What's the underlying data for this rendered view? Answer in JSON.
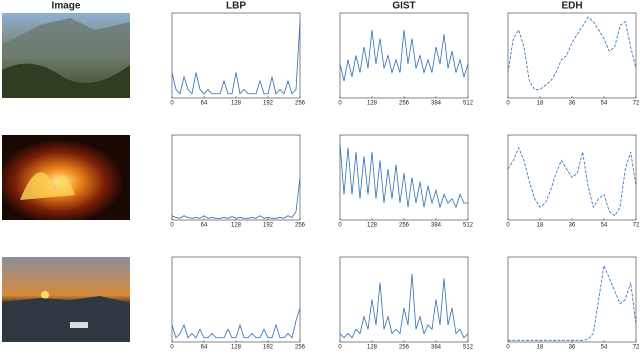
{
  "header": {
    "image_title": "Image"
  },
  "chart_data": [
    {
      "type": "line",
      "title": "LBP",
      "x": [
        0,
        8,
        16,
        24,
        32,
        40,
        48,
        56,
        64,
        72,
        80,
        88,
        96,
        104,
        112,
        120,
        128,
        136,
        144,
        152,
        160,
        168,
        176,
        184,
        192,
        200,
        208,
        216,
        224,
        232,
        240,
        248,
        256
      ],
      "values": [
        0.3,
        0.1,
        0.05,
        0.25,
        0.1,
        0.05,
        0.3,
        0.1,
        0.05,
        0.1,
        0.05,
        0.05,
        0.05,
        0.2,
        0.05,
        0.05,
        0.3,
        0.05,
        0.1,
        0.05,
        0.05,
        0.05,
        0.2,
        0.05,
        0.05,
        0.25,
        0.05,
        0.1,
        0.05,
        0.2,
        0.05,
        0.1,
        0.9
      ],
      "xlim": [
        0,
        256
      ],
      "xticks": [
        0,
        64,
        128,
        192,
        256
      ],
      "ylim": [
        0,
        1
      ],
      "color": "#2a6fb5",
      "line_style": "solid"
    },
    {
      "type": "line",
      "title": "GIST",
      "x": [
        0,
        16,
        32,
        48,
        64,
        80,
        96,
        112,
        128,
        144,
        160,
        176,
        192,
        208,
        224,
        240,
        256,
        272,
        288,
        304,
        320,
        336,
        352,
        368,
        384,
        400,
        416,
        432,
        448,
        464,
        480,
        496,
        512
      ],
      "values": [
        0.4,
        0.2,
        0.45,
        0.25,
        0.5,
        0.3,
        0.6,
        0.35,
        0.8,
        0.4,
        0.7,
        0.35,
        0.5,
        0.3,
        0.45,
        0.3,
        0.8,
        0.4,
        0.7,
        0.35,
        0.5,
        0.3,
        0.45,
        0.3,
        0.6,
        0.4,
        0.75,
        0.35,
        0.55,
        0.3,
        0.45,
        0.25,
        0.4
      ],
      "xlim": [
        0,
        512
      ],
      "xticks": [
        0,
        128,
        256,
        384,
        512
      ],
      "ylim": [
        0,
        1
      ],
      "color": "#2a6fb5",
      "line_style": "solid"
    },
    {
      "type": "line",
      "title": "EDH",
      "x": [
        0,
        3,
        6,
        9,
        12,
        15,
        18,
        21,
        24,
        27,
        30,
        33,
        36,
        39,
        42,
        45,
        48,
        51,
        54,
        57,
        60,
        63,
        66,
        69,
        72
      ],
      "values": [
        0.3,
        0.7,
        0.8,
        0.6,
        0.2,
        0.1,
        0.1,
        0.15,
        0.2,
        0.3,
        0.45,
        0.5,
        0.65,
        0.75,
        0.85,
        0.95,
        0.9,
        0.8,
        0.7,
        0.55,
        0.6,
        0.85,
        0.9,
        0.6,
        0.35
      ],
      "xlim": [
        0,
        72
      ],
      "xticks": [
        0,
        18,
        36,
        54,
        72
      ],
      "ylim": [
        0,
        1
      ],
      "color": "#2a6fb5",
      "line_style": "dashed"
    },
    {
      "type": "line",
      "x": [
        0,
        8,
        16,
        24,
        32,
        40,
        48,
        56,
        64,
        72,
        80,
        88,
        96,
        104,
        112,
        120,
        128,
        136,
        144,
        152,
        160,
        168,
        176,
        184,
        192,
        200,
        208,
        216,
        224,
        232,
        240,
        248,
        256
      ],
      "values": [
        0.05,
        0.03,
        0.02,
        0.05,
        0.03,
        0.02,
        0.03,
        0.02,
        0.05,
        0.02,
        0.03,
        0.02,
        0.02,
        0.03,
        0.02,
        0.04,
        0.02,
        0.03,
        0.02,
        0.02,
        0.03,
        0.02,
        0.05,
        0.02,
        0.03,
        0.02,
        0.02,
        0.03,
        0.02,
        0.05,
        0.03,
        0.1,
        0.5
      ],
      "xlim": [
        0,
        256
      ],
      "xticks": [
        0,
        64,
        128,
        192,
        256
      ],
      "ylim": [
        0,
        1
      ],
      "color": "#2a6fb5",
      "line_style": "solid"
    },
    {
      "type": "line",
      "x": [
        0,
        16,
        32,
        48,
        64,
        80,
        96,
        112,
        128,
        144,
        160,
        176,
        192,
        208,
        224,
        240,
        256,
        272,
        288,
        304,
        320,
        336,
        352,
        368,
        384,
        400,
        416,
        432,
        448,
        464,
        480,
        496,
        512
      ],
      "values": [
        0.9,
        0.3,
        0.85,
        0.3,
        0.8,
        0.25,
        0.75,
        0.3,
        0.8,
        0.25,
        0.7,
        0.2,
        0.6,
        0.25,
        0.65,
        0.2,
        0.55,
        0.15,
        0.5,
        0.2,
        0.45,
        0.15,
        0.4,
        0.2,
        0.35,
        0.15,
        0.3,
        0.2,
        0.25,
        0.15,
        0.3,
        0.2,
        0.2
      ],
      "xlim": [
        0,
        512
      ],
      "xticks": [
        0,
        128,
        256,
        384,
        512
      ],
      "ylim": [
        0,
        1
      ],
      "color": "#2a6fb5",
      "line_style": "solid"
    },
    {
      "type": "line",
      "x": [
        0,
        3,
        6,
        9,
        12,
        15,
        18,
        21,
        24,
        27,
        30,
        33,
        36,
        39,
        42,
        45,
        48,
        51,
        54,
        57,
        60,
        63,
        66,
        69,
        72
      ],
      "values": [
        0.6,
        0.7,
        0.85,
        0.7,
        0.45,
        0.25,
        0.15,
        0.2,
        0.35,
        0.55,
        0.7,
        0.6,
        0.5,
        0.55,
        0.8,
        0.4,
        0.15,
        0.25,
        0.3,
        0.1,
        0.05,
        0.15,
        0.6,
        0.8,
        0.4
      ],
      "xlim": [
        0,
        72
      ],
      "xticks": [
        0,
        18,
        36,
        54,
        72
      ],
      "ylim": [
        0,
        1
      ],
      "color": "#2a6fb5",
      "line_style": "dashed"
    },
    {
      "type": "line",
      "x": [
        0,
        8,
        16,
        24,
        32,
        40,
        48,
        56,
        64,
        72,
        80,
        88,
        96,
        104,
        112,
        120,
        128,
        136,
        144,
        152,
        160,
        168,
        176,
        184,
        192,
        200,
        208,
        216,
        224,
        232,
        240,
        248,
        256
      ],
      "values": [
        0.2,
        0.05,
        0.1,
        0.2,
        0.05,
        0.1,
        0.05,
        0.15,
        0.05,
        0.05,
        0.1,
        0.05,
        0.05,
        0.05,
        0.15,
        0.05,
        0.05,
        0.2,
        0.05,
        0.05,
        0.1,
        0.05,
        0.05,
        0.15,
        0.05,
        0.05,
        0.2,
        0.05,
        0.05,
        0.1,
        0.05,
        0.25,
        0.4
      ],
      "xlim": [
        0,
        256
      ],
      "xticks": [
        0,
        64,
        128,
        192,
        256
      ],
      "ylim": [
        0,
        1
      ],
      "color": "#2a6fb5",
      "line_style": "solid"
    },
    {
      "type": "line",
      "x": [
        0,
        16,
        32,
        48,
        64,
        80,
        96,
        112,
        128,
        144,
        160,
        176,
        192,
        208,
        224,
        240,
        256,
        272,
        288,
        304,
        320,
        336,
        352,
        368,
        384,
        400,
        416,
        432,
        448,
        464,
        480,
        496,
        512
      ],
      "values": [
        0.1,
        0.05,
        0.1,
        0.05,
        0.15,
        0.1,
        0.3,
        0.15,
        0.5,
        0.2,
        0.7,
        0.15,
        0.3,
        0.1,
        0.15,
        0.1,
        0.4,
        0.2,
        0.8,
        0.15,
        0.3,
        0.1,
        0.2,
        0.15,
        0.5,
        0.2,
        0.75,
        0.2,
        0.4,
        0.1,
        0.15,
        0.05,
        0.1
      ],
      "xlim": [
        0,
        512
      ],
      "xticks": [
        0,
        128,
        256,
        384,
        512
      ],
      "ylim": [
        0,
        1
      ],
      "color": "#2a6fb5",
      "line_style": "solid"
    },
    {
      "type": "line",
      "x": [
        0,
        3,
        6,
        9,
        12,
        15,
        18,
        21,
        24,
        27,
        30,
        33,
        36,
        39,
        42,
        45,
        48,
        51,
        54,
        57,
        60,
        63,
        66,
        69,
        72
      ],
      "values": [
        0.02,
        0.02,
        0.02,
        0.02,
        0.02,
        0.02,
        0.02,
        0.02,
        0.02,
        0.02,
        0.02,
        0.02,
        0.02,
        0.02,
        0.02,
        0.03,
        0.1,
        0.5,
        0.9,
        0.75,
        0.6,
        0.45,
        0.5,
        0.7,
        0.2
      ],
      "xlim": [
        0,
        72
      ],
      "xticks": [
        0,
        18,
        36,
        54,
        72
      ],
      "ylim": [
        0,
        1
      ],
      "color": "#2a6fb5",
      "line_style": "dashed"
    }
  ]
}
